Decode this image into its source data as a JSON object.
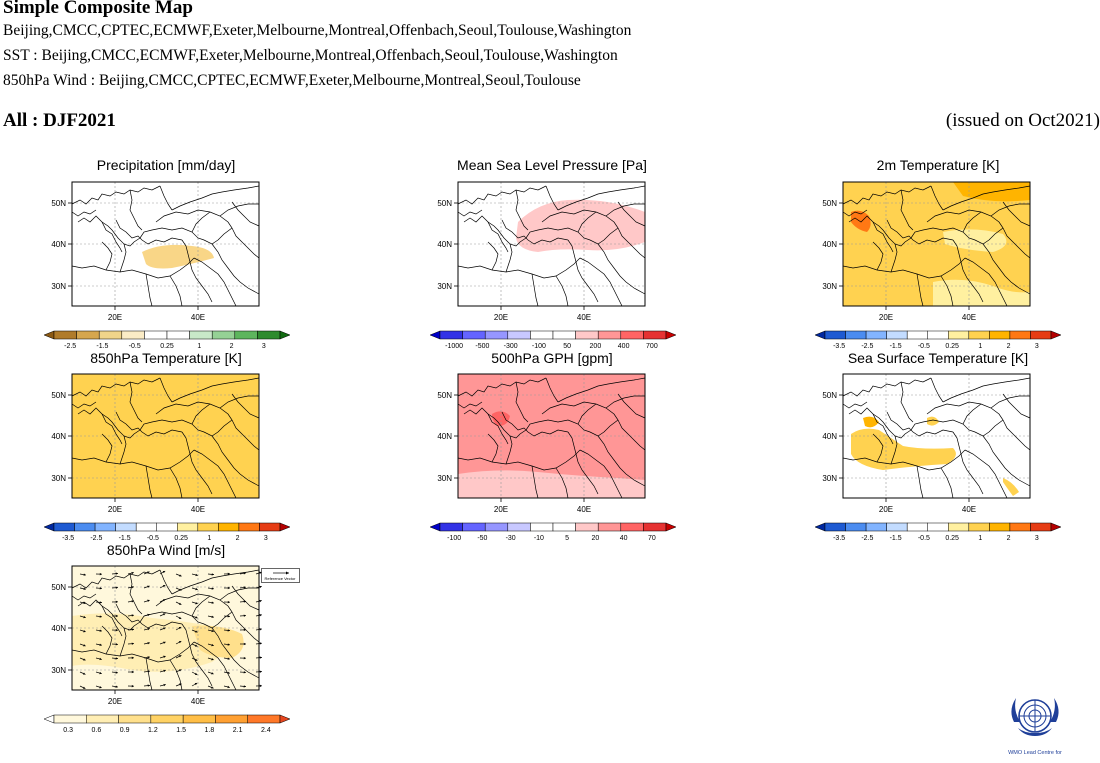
{
  "header": {
    "title": "Simple Composite Map",
    "line_precip": "Beijing,CMCC,CPTEC,ECMWF,Exeter,Melbourne,Montreal,Offenbach,Seoul,Toulouse,Washington",
    "line_sst": "SST : Beijing,CMCC,ECMWF,Exeter,Melbourne,Montreal,Offenbach,Seoul,Toulouse,Washington",
    "line_wind": "850hPa Wind : Beijing,CMCC,CPTEC,ECMWF,Exeter,Melbourne,Montreal,Seoul,Toulouse",
    "season": "All : DJF2021",
    "issued": "(issued on Oct2021)"
  },
  "axes": {
    "lat_labels": [
      "50N",
      "40N",
      "30N"
    ],
    "lon_labels": [
      "20E",
      "40E"
    ]
  },
  "panels": [
    {
      "title": "Precipitation [mm/day]",
      "fill": "precip",
      "colorbar": [
        "-2.5",
        "-1.5",
        "-0.5",
        "0.25",
        "1",
        "2",
        "3"
      ],
      "colors": [
        "#8c5a14",
        "#b07b2a",
        "#d6a64e",
        "#f0d48a",
        "#fbecc6",
        "#ffffff",
        "#ffffff",
        "#c9e8c9",
        "#95d195",
        "#5db55d",
        "#2e8b2e",
        "#116b11"
      ]
    },
    {
      "title": "Mean Sea Level Pressure [Pa]",
      "fill": "mslp",
      "colorbar": [
        "-1000",
        "-500",
        "-300",
        "-100",
        "50",
        "200",
        "400",
        "700"
      ],
      "colors": [
        "#0000c8",
        "#3232e6",
        "#6464ff",
        "#9696ff",
        "#c8c8ff",
        "#ffffff",
        "#ffffff",
        "#ffc8c8",
        "#ff9696",
        "#ff6464",
        "#e63232",
        "#c80000"
      ]
    },
    {
      "title": "2m Temperature [K]",
      "fill": "t2m",
      "colorbar": [
        "-3.5",
        "-2.5",
        "-1.5",
        "-0.5",
        "0.25",
        "1",
        "2",
        "3"
      ],
      "colors": [
        "#0028a0",
        "#1e5ad2",
        "#4b8cf0",
        "#82b4ff",
        "#c3dcff",
        "#ffffff",
        "#ffffff",
        "#fff0a0",
        "#ffd250",
        "#ffb400",
        "#ff7814",
        "#e63c14",
        "#b40000"
      ]
    },
    {
      "title": "850hPa Temperature [K]",
      "fill": "t850",
      "colorbar": [
        "-3.5",
        "-2.5",
        "-1.5",
        "-0.5",
        "0.25",
        "1",
        "2",
        "3"
      ],
      "colors": [
        "#0028a0",
        "#1e5ad2",
        "#4b8cf0",
        "#82b4ff",
        "#c3dcff",
        "#ffffff",
        "#ffffff",
        "#fff0a0",
        "#ffd250",
        "#ffb400",
        "#ff7814",
        "#e63c14",
        "#b40000"
      ]
    },
    {
      "title": "500hPa GPH [gpm]",
      "fill": "gph",
      "colorbar": [
        "-100",
        "-50",
        "-30",
        "-10",
        "5",
        "20",
        "40",
        "70"
      ],
      "colors": [
        "#0000c8",
        "#3232e6",
        "#6464ff",
        "#9696ff",
        "#c8c8ff",
        "#ffffff",
        "#ffffff",
        "#ffc8c8",
        "#ff9696",
        "#ff6464",
        "#e63232",
        "#c80000"
      ]
    },
    {
      "title": "Sea Surface Temperature [K]",
      "fill": "sst",
      "colorbar": [
        "-3.5",
        "-2.5",
        "-1.5",
        "-0.5",
        "0.25",
        "1",
        "2",
        "3"
      ],
      "colors": [
        "#0028a0",
        "#1e5ad2",
        "#4b8cf0",
        "#82b4ff",
        "#c3dcff",
        "#ffffff",
        "#ffffff",
        "#fff0a0",
        "#ffd250",
        "#ffb400",
        "#ff7814",
        "#e63c14",
        "#b40000"
      ]
    },
    {
      "title": "850hPa Wind [m/s]",
      "fill": "wind",
      "colorbar": [
        "0.3",
        "0.6",
        "0.9",
        "1.2",
        "1.5",
        "1.8",
        "2.1",
        "2.4"
      ],
      "colors": [
        "#ffffff",
        "#fff8dc",
        "#ffeeb4",
        "#ffe08c",
        "#ffd264",
        "#ffbe46",
        "#ffa032",
        "#ff7828",
        "#e6461e"
      ],
      "reference_vector": "Reference Vector"
    }
  ],
  "logo_text": "WMO Lead Centre for"
}
